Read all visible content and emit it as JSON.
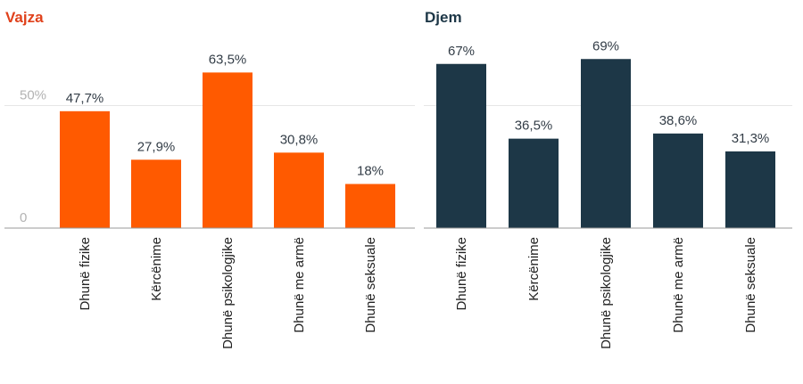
{
  "chart_data": [
    {
      "type": "bar",
      "title": "Vajza",
      "categories": [
        "Dhunë fizike",
        "Kërcënime",
        "Dhunë psikologjike",
        "Dhunë me armë",
        "Dhunë seksuale"
      ],
      "values": [
        47.7,
        27.9,
        63.5,
        30.8,
        18
      ],
      "value_labels": [
        "47,7%",
        "27,9%",
        "63,5%",
        "30,8%",
        "18%"
      ],
      "ylim": [
        0,
        100
      ],
      "yticks": [
        {
          "value": 0,
          "label": "0"
        },
        {
          "value": 50,
          "label": "50%"
        }
      ],
      "gridlines": [
        50
      ],
      "grid": true,
      "color": "#ff5a00",
      "title_color": "#e0411b"
    },
    {
      "type": "bar",
      "title": "Djem",
      "categories": [
        "Dhunë fizike",
        "Kërcënime",
        "Dhunë psikologjike",
        "Dhunë me armë",
        "Dhunë seksuale"
      ],
      "values": [
        67,
        36.5,
        69,
        38.6,
        31.3
      ],
      "value_labels": [
        "67%",
        "36,5%",
        "69%",
        "38,6%",
        "31,3%"
      ],
      "ylim": [
        0,
        100
      ],
      "yticks": [],
      "gridlines": [
        50
      ],
      "grid": true,
      "color": "#1d3747",
      "title_color": "#1d3747"
    }
  ],
  "colors": {
    "baseline": "#999999",
    "gridline": "#e6e6e6"
  }
}
